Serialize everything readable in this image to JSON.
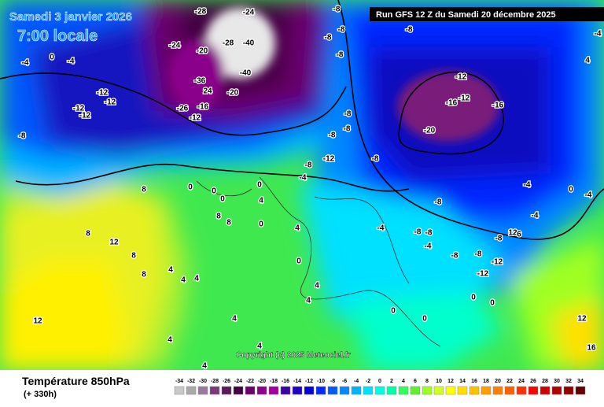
{
  "header": {
    "date": "Samedi 3 janvier 2026",
    "time": "7:00 locale",
    "run": "Run GFS 12 Z du Samedi 20 décembre 2025"
  },
  "copyright": "Copyright (c) 2025 Meteociel.fr",
  "footer": {
    "title": "Température 850hPa",
    "lead": "(+ 330h)"
  },
  "legend": {
    "ticks": [
      -34,
      -32,
      -30,
      -28,
      -26,
      -24,
      -22,
      -20,
      -18,
      -16,
      -14,
      -12,
      -10,
      -8,
      -6,
      -4,
      -2,
      0,
      2,
      4,
      6,
      8,
      10,
      12,
      14,
      16,
      18,
      20,
      22,
      24,
      26,
      28,
      30,
      32,
      34
    ],
    "colors": [
      "#c8c8c8",
      "#a8a8a8",
      "#9a7a9a",
      "#7a3a7a",
      "#5a1a5a",
      "#400040",
      "#6a006a",
      "#8a008a",
      "#a000a0",
      "#3a00a8",
      "#2000c8",
      "#0000d8",
      "#0028ff",
      "#0058ff",
      "#0088ff",
      "#00b4ff",
      "#00e0ff",
      "#00ffe0",
      "#00ffaa",
      "#30ff60",
      "#60f030",
      "#a0ff20",
      "#d0ff20",
      "#ffff00",
      "#ffe000",
      "#ffc000",
      "#ffa000",
      "#ff8000",
      "#ff6000",
      "#ff3000",
      "#ff0000",
      "#d00000",
      "#b00000",
      "#900000",
      "#600000"
    ]
  },
  "map": {
    "labels": [
      "-28",
      "-24",
      "-24",
      "-20",
      "-28",
      "-40",
      "-40",
      "-36",
      "24",
      "-20",
      "-16",
      "-26",
      "-12",
      "-12",
      "-12",
      "-12",
      "-12",
      "-8",
      "-4",
      "0",
      "-4",
      "-8",
      "-8",
      "-8",
      "-8",
      "-8",
      "-12",
      "-12",
      "-16",
      "-16",
      "-20",
      "-8",
      "-8",
      "-8",
      "-8",
      "-12",
      "-8",
      "-4",
      "0",
      "0",
      "0",
      "8",
      "0",
      "8",
      "8",
      "4",
      "0",
      "8",
      "12",
      "8",
      "8",
      "4",
      "4",
      "4",
      "4",
      "0",
      "4",
      "4",
      "-8",
      "-4",
      "-8",
      "-8",
      "-4",
      "-8",
      "-8",
      "-8",
      "12",
      "6",
      "-12",
      "-12",
      "-4",
      "0",
      "-4",
      "-4",
      "12",
      "-4",
      "4",
      "12",
      "16",
      "4",
      "4",
      "4",
      "4",
      "0",
      "0",
      "0",
      "0"
    ]
  }
}
